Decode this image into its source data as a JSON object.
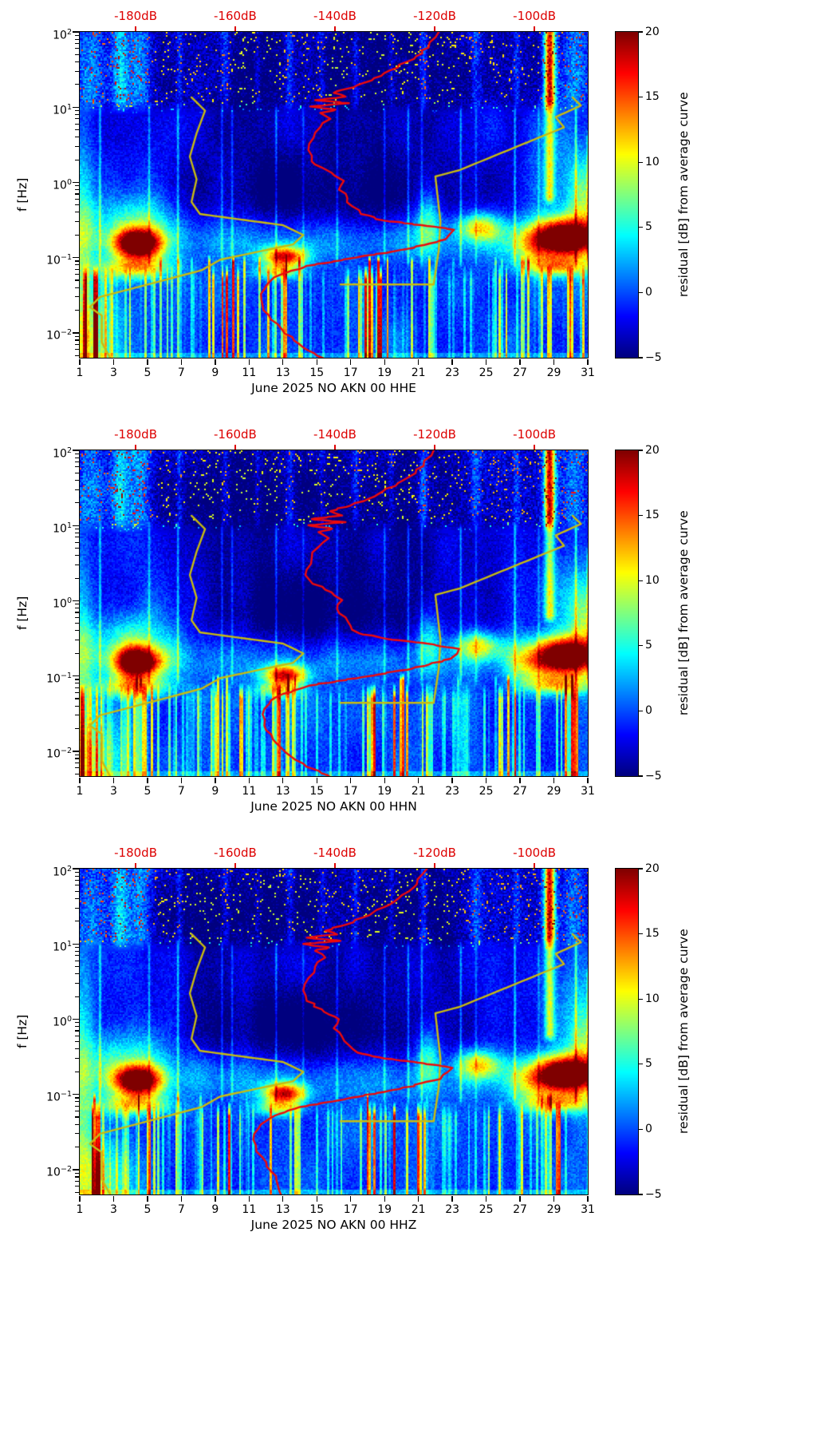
{
  "figure": {
    "background": "#ffffff"
  },
  "chart_data": {
    "type": "heatmap",
    "values_estimated_from_pixels": true,
    "axes": {
      "ylabel": "f [Hz]",
      "x_ticks": [
        "1",
        "3",
        "5",
        "7",
        "9",
        "11",
        "13",
        "15",
        "17",
        "19",
        "21",
        "23",
        "25",
        "27",
        "29",
        "31"
      ],
      "x_range_days": [
        1,
        31
      ],
      "y_ticks": [
        {
          "exp": "2",
          "logf": 2
        },
        {
          "exp": "1",
          "logf": 1
        },
        {
          "exp": "0",
          "logf": 0
        },
        {
          "exp": "−1",
          "logf": -1
        },
        {
          "exp": "−2",
          "logf": -2
        }
      ],
      "f_log_range": [
        -2.33,
        2
      ],
      "top_db_ticks": [
        {
          "label": "-180dB",
          "day": 4.3
        },
        {
          "label": "-160dB",
          "day": 10.18
        },
        {
          "label": "-140dB",
          "day": 16.07
        },
        {
          "label": "-120dB",
          "day": 21.96
        },
        {
          "label": "-100dB",
          "day": 27.85
        }
      ],
      "top_db_color": "#dd0000"
    },
    "colorbar": {
      "label": "residual [dB] from average curve",
      "vmin": -5,
      "vmax": 20,
      "colormap": "jet",
      "ticks": [
        {
          "label": "20",
          "v": 20
        },
        {
          "label": "15",
          "v": 15
        },
        {
          "label": "10",
          "v": 10
        },
        {
          "label": "5",
          "v": 5
        },
        {
          "label": "0",
          "v": 0
        },
        {
          "label": "−5",
          "v": -5
        }
      ]
    },
    "style": {
      "red_curve_color": "#ee0a0a",
      "yellow_curve_color": "#c8bb10",
      "frame_color": "#000000"
    },
    "overlay_yellow_curves": [
      [
        [
          2.9,
          0.0042
        ],
        [
          2.3,
          0.0075
        ],
        [
          2.3,
          0.017
        ],
        [
          1.6,
          0.022
        ],
        [
          2.2,
          0.03
        ],
        [
          8.2,
          0.068
        ],
        [
          9.3,
          0.094
        ],
        [
          13.6,
          0.15
        ],
        [
          14.2,
          0.2
        ],
        [
          13.0,
          0.27
        ],
        [
          8.1,
          0.38
        ],
        [
          7.6,
          0.55
        ],
        [
          7.9,
          1.1
        ],
        [
          7.5,
          2.2
        ],
        [
          7.9,
          4.5
        ],
        [
          8.4,
          9.0
        ],
        [
          7.6,
          13.5
        ]
      ],
      [
        [
          16.4,
          0.044
        ],
        [
          21.9,
          0.044
        ],
        [
          22.2,
          0.125
        ],
        [
          22.3,
          0.3
        ],
        [
          22.0,
          1.2
        ],
        [
          23.4,
          1.45
        ],
        [
          29.6,
          5.4
        ],
        [
          29.1,
          7.4
        ],
        [
          30.6,
          10.5
        ],
        [
          30.1,
          13.5
        ]
      ]
    ],
    "panels": [
      {
        "title": "June 2025 NO AKN 00 HHE",
        "seed": 11,
        "red_curve": [
          [
            22.2,
            100
          ],
          [
            21.6,
            62
          ],
          [
            20.3,
            40
          ],
          [
            18.8,
            26
          ],
          [
            17.2,
            18.5
          ],
          [
            16.0,
            15.5
          ],
          [
            16.7,
            13.8
          ],
          [
            14.9,
            12.4
          ],
          [
            16.9,
            11.3
          ],
          [
            14.6,
            10.2
          ],
          [
            16.1,
            9.3
          ],
          [
            15.2,
            8.4
          ],
          [
            15.8,
            7.0
          ],
          [
            15.2,
            5.4
          ],
          [
            14.8,
            3.9
          ],
          [
            14.5,
            2.7
          ],
          [
            14.7,
            1.9
          ],
          [
            15.6,
            1.45
          ],
          [
            16.6,
            1.05
          ],
          [
            16.3,
            0.8
          ],
          [
            16.8,
            0.62
          ],
          [
            17.1,
            0.48
          ],
          [
            17.6,
            0.38
          ],
          [
            19.0,
            0.31
          ],
          [
            21.2,
            0.27
          ],
          [
            23.1,
            0.235
          ],
          [
            22.6,
            0.175
          ],
          [
            20.3,
            0.13
          ],
          [
            17.3,
            0.1
          ],
          [
            14.4,
            0.078
          ],
          [
            12.9,
            0.06
          ],
          [
            12.1,
            0.045
          ],
          [
            11.7,
            0.033
          ],
          [
            11.8,
            0.023
          ],
          [
            12.3,
            0.015
          ],
          [
            13.1,
            0.0098
          ],
          [
            14.2,
            0.0064
          ],
          [
            15.5,
            0.0045
          ]
        ]
      },
      {
        "title": "June 2025 NO AKN 00 HHN",
        "seed": 23,
        "red_curve": [
          [
            21.9,
            100
          ],
          [
            21.3,
            62
          ],
          [
            20.1,
            40
          ],
          [
            18.6,
            26
          ],
          [
            17.0,
            18.5
          ],
          [
            15.8,
            15.5
          ],
          [
            16.5,
            13.6
          ],
          [
            14.7,
            12.2
          ],
          [
            16.7,
            11.1
          ],
          [
            14.5,
            10.1
          ],
          [
            15.9,
            9.1
          ],
          [
            15.1,
            8.2
          ],
          [
            15.7,
            6.8
          ],
          [
            15.1,
            5.2
          ],
          [
            14.7,
            3.7
          ],
          [
            14.4,
            2.6
          ],
          [
            14.6,
            1.85
          ],
          [
            15.5,
            1.4
          ],
          [
            16.5,
            1.02
          ],
          [
            16.2,
            0.78
          ],
          [
            16.7,
            0.6
          ],
          [
            17.0,
            0.46
          ],
          [
            17.5,
            0.37
          ],
          [
            19.2,
            0.31
          ],
          [
            21.5,
            0.27
          ],
          [
            23.4,
            0.23
          ],
          [
            22.9,
            0.17
          ],
          [
            20.6,
            0.125
          ],
          [
            17.6,
            0.096
          ],
          [
            14.6,
            0.075
          ],
          [
            13.0,
            0.058
          ],
          [
            12.2,
            0.043
          ],
          [
            11.8,
            0.031
          ],
          [
            11.9,
            0.022
          ],
          [
            12.4,
            0.0145
          ],
          [
            13.2,
            0.0095
          ],
          [
            14.4,
            0.0062
          ],
          [
            15.8,
            0.0045
          ]
        ]
      },
      {
        "title": "June 2025 NO AKN 00 HHZ",
        "seed": 37,
        "red_curve": [
          [
            21.5,
            100
          ],
          [
            20.9,
            62
          ],
          [
            19.8,
            40
          ],
          [
            18.3,
            26
          ],
          [
            16.7,
            18
          ],
          [
            15.5,
            15
          ],
          [
            16.2,
            13.4
          ],
          [
            14.4,
            12.1
          ],
          [
            16.4,
            11.0
          ],
          [
            14.2,
            10.0
          ],
          [
            15.7,
            9.0
          ],
          [
            14.9,
            8.1
          ],
          [
            15.5,
            6.6
          ],
          [
            14.9,
            5.0
          ],
          [
            14.5,
            3.5
          ],
          [
            14.2,
            2.4
          ],
          [
            14.4,
            1.75
          ],
          [
            15.3,
            1.35
          ],
          [
            16.3,
            1.0
          ],
          [
            16.0,
            0.76
          ],
          [
            16.5,
            0.58
          ],
          [
            16.9,
            0.45
          ],
          [
            17.4,
            0.36
          ],
          [
            19.0,
            0.3
          ],
          [
            21.3,
            0.26
          ],
          [
            23.0,
            0.225
          ],
          [
            22.3,
            0.16
          ],
          [
            19.9,
            0.118
          ],
          [
            16.8,
            0.088
          ],
          [
            14.0,
            0.068
          ],
          [
            12.5,
            0.052
          ],
          [
            11.7,
            0.04
          ],
          [
            11.3,
            0.03
          ],
          [
            11.4,
            0.021
          ],
          [
            11.8,
            0.0145
          ],
          [
            12.3,
            0.0095
          ],
          [
            12.7,
            0.0062
          ],
          [
            12.9,
            0.0045
          ]
        ]
      }
    ],
    "heatmap_model": {
      "base": -1.6,
      "mottle": 1.3,
      "bottom_edge_lift": 2.5,
      "blobs": [
        {
          "d": 16,
          "L": -0.78,
          "sx": 14,
          "sy": 0.24,
          "a": 4.5
        },
        {
          "d": 4.4,
          "L": -0.82,
          "sx": 1.0,
          "sy": 0.14,
          "a": 24
        },
        {
          "d": 4.2,
          "L": -1.14,
          "sx": 1.5,
          "sy": 0.1,
          "a": 11
        },
        {
          "d": 3.6,
          "L": -0.5,
          "sx": 1.8,
          "sy": 0.25,
          "a": 5
        },
        {
          "d": 13.1,
          "L": -0.99,
          "sx": 0.9,
          "sy": 0.1,
          "a": 18
        },
        {
          "d": 12.7,
          "L": -1.19,
          "sx": 0.9,
          "sy": 0.07,
          "a": 9
        },
        {
          "d": 24.6,
          "L": -0.6,
          "sx": 0.9,
          "sy": 0.13,
          "a": 11
        },
        {
          "d": 29.6,
          "L": -0.74,
          "sx": 1.3,
          "sy": 0.17,
          "a": 25
        },
        {
          "d": 29.2,
          "L": -1.12,
          "sx": 1.4,
          "sy": 0.09,
          "a": 11
        },
        {
          "d": 30.9,
          "L": -0.35,
          "sx": 0.7,
          "sy": 0.45,
          "a": 7
        },
        {
          "d": 21.6,
          "L": -0.5,
          "sx": 0.5,
          "sy": 0.3,
          "a": 7
        },
        {
          "d": 15.5,
          "L": -0.18,
          "sx": 6.2,
          "sy": 0.45,
          "a": -4.2
        },
        {
          "d": 11,
          "L": 1.35,
          "sx": 3.6,
          "sy": 0.8,
          "a": -2.2
        },
        {
          "d": 20,
          "L": 1.35,
          "sx": 3.2,
          "sy": 0.8,
          "a": -2.2
        },
        {
          "d": 1.1,
          "L": -0.9,
          "sx": 0.55,
          "sy": 1.2,
          "a": 7
        },
        {
          "d": 2.0,
          "L": -2.15,
          "sx": 1.3,
          "sy": 0.5,
          "a": 7
        },
        {
          "d": 29.8,
          "L": -0.05,
          "sx": 1.4,
          "sy": 0.55,
          "a": 4
        },
        {
          "d": 5.0,
          "L": -0.35,
          "sx": 1.2,
          "sy": 0.5,
          "a": 3
        },
        {
          "d": 27.5,
          "L": -0.85,
          "sx": 1.0,
          "sy": 0.2,
          "a": 6
        }
      ],
      "vlines": [
        {
          "d": 2.2,
          "a": 5
        },
        {
          "d": 5.1,
          "a": 4
        },
        {
          "d": 6.8,
          "a": 5
        },
        {
          "d": 9.4,
          "a": 4
        },
        {
          "d": 10.0,
          "a": 4
        },
        {
          "d": 12.6,
          "a": 5
        },
        {
          "d": 14.2,
          "a": 3
        },
        {
          "d": 16.2,
          "a": 4
        },
        {
          "d": 19.0,
          "a": 4
        },
        {
          "d": 20.4,
          "a": 5
        },
        {
          "d": 21.2,
          "a": 4
        },
        {
          "d": 23.5,
          "a": 5
        },
        {
          "d": 24.4,
          "a": 3
        },
        {
          "d": 26.7,
          "a": 5
        },
        {
          "d": 28.1,
          "a": 3
        },
        {
          "d": 30.3,
          "a": 6
        },
        {
          "d": 31.0,
          "a": 5,
          "L1": 0.6
        },
        {
          "d": 28.75,
          "w": 0.3,
          "L0": -0.2,
          "L1": 2,
          "a": 10
        }
      ],
      "stripes": {
        "col_width": 0.13,
        "thresh": 0.52,
        "gain": 15,
        "base_lift": 1.4,
        "fade_top": -1.08,
        "fade_len": 0.22,
        "clusters": [
          {
            "d": 1.6,
            "s": 0.8,
            "a": 0.9
          },
          {
            "d": 5.6,
            "s": 1.0,
            "a": 0.8
          },
          {
            "d": 9.8,
            "s": 1.0,
            "a": 0.9
          },
          {
            "d": 13.0,
            "s": 0.8,
            "a": 0.8
          },
          {
            "d": 18.4,
            "s": 1.1,
            "a": 1.0
          },
          {
            "d": 20.6,
            "s": 0.8,
            "a": 0.9
          },
          {
            "d": 26.6,
            "s": 1.0,
            "a": 0.8
          },
          {
            "d": 29.9,
            "s": 1.0,
            "a": 0.9
          }
        ]
      },
      "speckle": {
        "start": 0.9,
        "len": 0.18,
        "noise": 4.5,
        "red_thresh": 0.966,
        "red_gain": 13,
        "hf_cols": [
          {
            "d": 1.8,
            "w": 0.8,
            "a": 3
          },
          {
            "d": 3.4,
            "w": 0.5,
            "a": 6
          },
          {
            "d": 4.6,
            "w": 0.7,
            "a": 5
          },
          {
            "d": 6.9,
            "w": 0.2,
            "a": 3
          },
          {
            "d": 9.6,
            "w": 0.25,
            "a": 3
          },
          {
            "d": 11.5,
            "w": 0.2,
            "a": 2.5
          },
          {
            "d": 13.4,
            "w": 0.25,
            "a": 3.5
          },
          {
            "d": 15.3,
            "w": 0.2,
            "a": 2.5
          },
          {
            "d": 17.3,
            "w": 0.2,
            "a": 3
          },
          {
            "d": 19.4,
            "w": 0.2,
            "a": 2.5
          },
          {
            "d": 21.3,
            "w": 0.25,
            "a": 5
          },
          {
            "d": 24.4,
            "w": 0.3,
            "a": 3.5
          },
          {
            "d": 26.8,
            "w": 0.2,
            "a": 3
          },
          {
            "d": 28.75,
            "w": 0.35,
            "a": 11
          },
          {
            "d": 30.2,
            "w": 0.7,
            "a": 3.5
          }
        ]
      }
    }
  }
}
